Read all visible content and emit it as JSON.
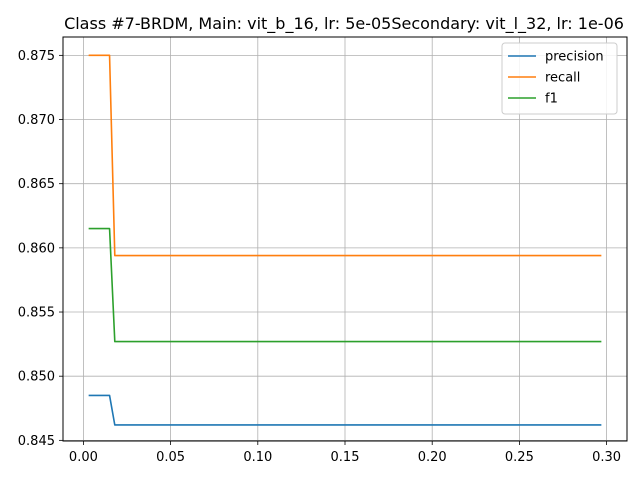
{
  "chart_data": {
    "type": "line",
    "title": "Class #7-BRDM, Main: vit_b_16, lr: 5e-05Secondary: vit_l_32, lr: 1e-06",
    "xlabel": "",
    "ylabel": "",
    "xlim": [
      -0.0117,
      0.3117
    ],
    "ylim": [
      0.84495,
      0.87643
    ],
    "x_ticks": [
      0.0,
      0.05,
      0.1,
      0.15,
      0.2,
      0.25,
      0.3
    ],
    "x_tick_labels": [
      "0.00",
      "0.05",
      "0.10",
      "0.15",
      "0.20",
      "0.25",
      "0.30"
    ],
    "y_ticks": [
      0.845,
      0.85,
      0.855,
      0.86,
      0.865,
      0.87,
      0.875
    ],
    "y_tick_labels": [
      "0.845",
      "0.850",
      "0.855",
      "0.860",
      "0.865",
      "0.870",
      "0.875"
    ],
    "grid": true,
    "legend_position": "top-right",
    "series": [
      {
        "name": "precision",
        "color": "#1f77b4",
        "x": [
          0.003,
          0.015,
          0.018,
          0.297
        ],
        "y": [
          0.8485,
          0.8485,
          0.8462,
          0.8462
        ]
      },
      {
        "name": "recall",
        "color": "#ff7f0e",
        "x": [
          0.003,
          0.015,
          0.018,
          0.297
        ],
        "y": [
          0.875,
          0.875,
          0.8594,
          0.8594
        ]
      },
      {
        "name": "f1",
        "color": "#2ca02c",
        "x": [
          0.003,
          0.015,
          0.018,
          0.297
        ],
        "y": [
          0.8615,
          0.8615,
          0.8527,
          0.8527
        ]
      }
    ]
  }
}
